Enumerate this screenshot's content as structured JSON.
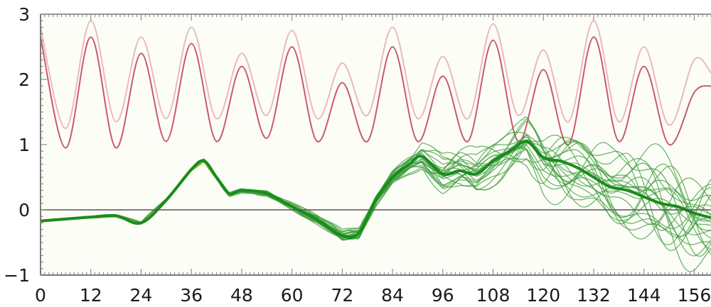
{
  "chart_data": {
    "type": "line",
    "xlim": [
      0,
      160
    ],
    "ylim": [
      -1,
      3
    ],
    "x_ticks": [
      0,
      12,
      24,
      36,
      48,
      60,
      72,
      84,
      96,
      108,
      120,
      132,
      144,
      156
    ],
    "y_ticks": [
      -1,
      0,
      1,
      2,
      3
    ],
    "x_tick_labels": [
      "0",
      "12",
      "24",
      "36",
      "48",
      "60",
      "72",
      "84",
      "96",
      "108",
      "120",
      "132",
      "144",
      "156"
    ],
    "y_tick_labels": [
      "−1",
      "0",
      "1",
      "2",
      "3"
    ],
    "grid": false,
    "reference_line_y": 0,
    "colors": {
      "plot_background": "#fdfdf7",
      "axis": "#7a7a7a",
      "zero_line": "#555555",
      "tide_main": "#c85a6a",
      "tide_light": "#e9b8c0",
      "ensemble": "#3f9e3f",
      "ensemble_mean": "#1a8c1a",
      "early_highlight": "#a8b83a"
    },
    "series": [
      {
        "role": "tide-main",
        "x": [
          0,
          6,
          12,
          18,
          24,
          30,
          36,
          42,
          48,
          54,
          60,
          66,
          72,
          78,
          84,
          90,
          96,
          102,
          108,
          114,
          120,
          126,
          132,
          138,
          144,
          150,
          156,
          160
        ],
        "y": [
          2.65,
          0.95,
          2.65,
          0.95,
          2.4,
          1.05,
          2.55,
          1.05,
          2.2,
          1.1,
          2.5,
          1.05,
          1.95,
          1.05,
          2.5,
          1.05,
          2.05,
          1.05,
          2.6,
          1.05,
          2.15,
          1.0,
          2.65,
          1.05,
          2.2,
          1.0,
          1.8,
          1.9
        ]
      },
      {
        "role": "tide-light",
        "x": [
          0,
          6,
          12,
          18,
          24,
          30,
          36,
          42,
          48,
          54,
          60,
          66,
          72,
          78,
          84,
          90,
          96,
          102,
          108,
          114,
          120,
          126,
          132,
          138,
          144,
          150,
          156,
          160
        ],
        "y": [
          2.8,
          1.25,
          2.9,
          1.35,
          2.65,
          1.4,
          2.8,
          1.4,
          2.4,
          1.45,
          2.75,
          1.4,
          2.25,
          1.45,
          2.8,
          1.4,
          2.35,
          1.4,
          2.85,
          1.45,
          2.45,
          1.35,
          2.9,
          1.35,
          2.5,
          1.3,
          2.3,
          2.1
        ]
      },
      {
        "role": "ensemble-mean",
        "x": [
          0,
          6,
          12,
          18,
          24,
          30,
          36,
          39,
          42,
          45,
          48,
          54,
          60,
          66,
          72,
          76,
          80,
          84,
          88,
          91,
          96,
          100,
          104,
          108,
          112,
          116,
          120,
          124,
          128,
          132,
          136,
          140,
          144,
          148,
          152,
          156,
          160
        ],
        "y": [
          -0.17,
          -0.14,
          -0.11,
          -0.09,
          -0.2,
          0.15,
          0.62,
          0.75,
          0.5,
          0.25,
          0.3,
          0.25,
          0.05,
          -0.15,
          -0.4,
          -0.35,
          0.15,
          0.5,
          0.7,
          0.82,
          0.55,
          0.6,
          0.55,
          0.75,
          0.9,
          1.05,
          0.8,
          0.75,
          0.65,
          0.5,
          0.35,
          0.3,
          0.2,
          0.1,
          0.05,
          -0.05,
          -0.12
        ]
      }
    ],
    "ensemble_count": 22
  }
}
